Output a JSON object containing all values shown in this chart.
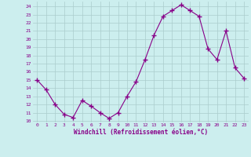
{
  "x": [
    0,
    1,
    2,
    3,
    4,
    5,
    6,
    7,
    8,
    9,
    10,
    11,
    12,
    13,
    14,
    15,
    16,
    17,
    18,
    19,
    20,
    21,
    22,
    23
  ],
  "y": [
    15,
    13.8,
    12,
    10.8,
    10.4,
    12.5,
    11.8,
    11,
    10.3,
    11,
    13,
    14.8,
    17.5,
    20.5,
    22.8,
    23.5,
    24.2,
    23.5,
    22.8,
    18.8,
    17.5,
    21,
    16.5,
    15.2
  ],
  "line_color": "#880088",
  "marker": "+",
  "marker_size": 4,
  "bg_color": "#cceeee",
  "grid_color": "#aacccc",
  "xlabel": "Windchill (Refroidissement éolien,°C)",
  "ylabel_ticks": [
    10,
    11,
    12,
    13,
    14,
    15,
    16,
    17,
    18,
    19,
    20,
    21,
    22,
    23,
    24
  ],
  "xlim": [
    -0.5,
    23.5
  ],
  "ylim": [
    9.8,
    24.6
  ]
}
